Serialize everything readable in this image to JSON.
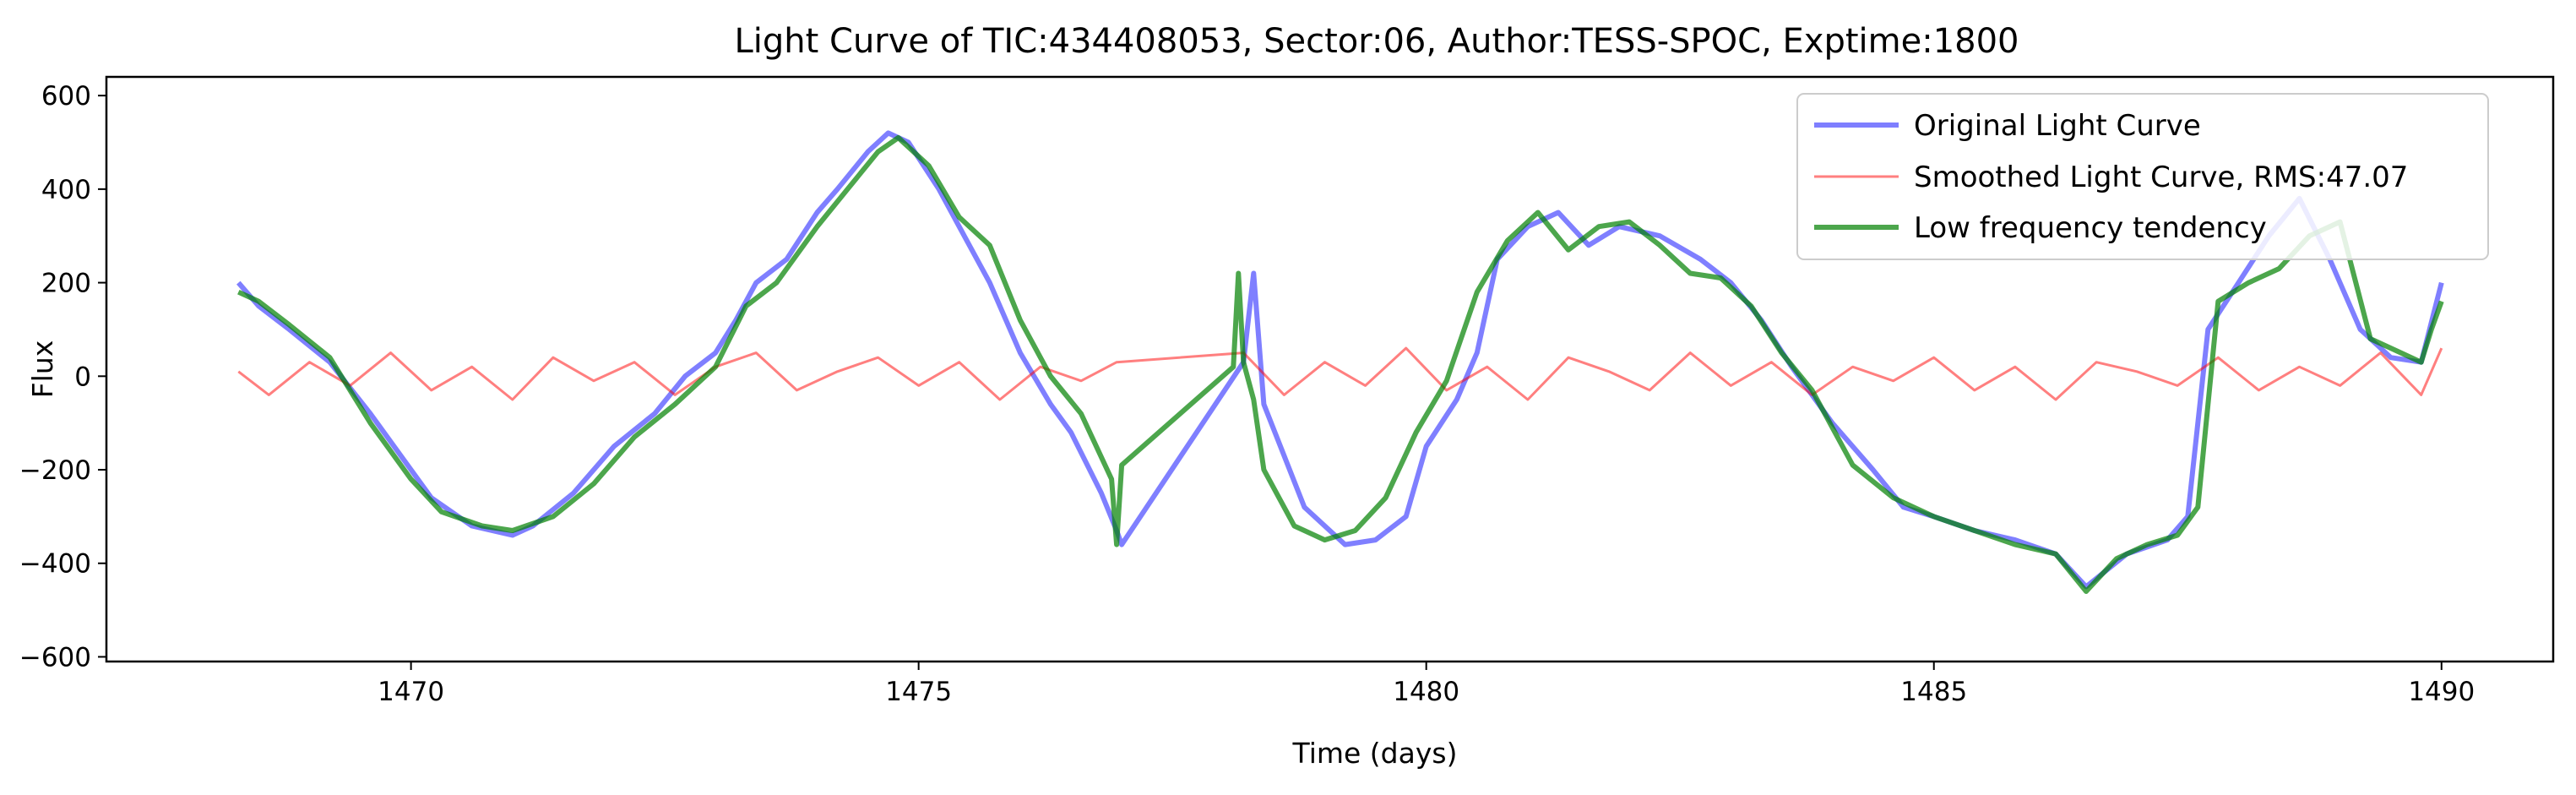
{
  "chart_data": {
    "type": "line",
    "title": "Light Curve of TIC:434408053, Sector:06, Author:TESS-SPOC, Exptime:1800",
    "xlabel": "Time (days)",
    "ylabel": "Flux",
    "xlim": [
      1467.0,
      1491.1
    ],
    "ylim": [
      -610,
      640
    ],
    "xticks": [
      1470,
      1475,
      1480,
      1485,
      1490
    ],
    "yticks": [
      -600,
      -400,
      -200,
      0,
      200,
      400,
      600
    ],
    "grid": false,
    "legend_position": "top-right",
    "series": [
      {
        "name": "Original Light Curve",
        "color": "#0000ff",
        "opacity": 0.5,
        "x": [
          1468.3,
          1468.5,
          1468.8,
          1469.2,
          1469.6,
          1470.0,
          1470.2,
          1470.6,
          1471.0,
          1471.2,
          1471.6,
          1472.0,
          1472.4,
          1472.7,
          1473.0,
          1473.2,
          1473.4,
          1473.7,
          1474.0,
          1474.2,
          1474.5,
          1474.7,
          1474.9,
          1475.2,
          1475.4,
          1475.7,
          1476.0,
          1476.3,
          1476.5,
          1476.8,
          1476.95,
          1477.0,
          1478.2,
          1478.3,
          1478.4,
          1478.8,
          1479.2,
          1479.5,
          1479.8,
          1480.0,
          1480.3,
          1480.5,
          1480.7,
          1481.0,
          1481.3,
          1481.6,
          1481.9,
          1482.3,
          1482.7,
          1483.0,
          1483.3,
          1483.6,
          1484.0,
          1484.4,
          1484.7,
          1485.0,
          1485.4,
          1485.8,
          1486.2,
          1486.5,
          1486.9,
          1487.3,
          1487.5,
          1487.7,
          1488.0,
          1488.3,
          1488.6,
          1488.9,
          1489.2,
          1489.5,
          1489.8,
          1490.0
        ],
        "y": [
          200,
          150,
          100,
          30,
          -80,
          -200,
          -260,
          -320,
          -340,
          -320,
          -250,
          -150,
          -80,
          0,
          50,
          120,
          200,
          250,
          350,
          400,
          480,
          520,
          500,
          400,
          320,
          200,
          50,
          -60,
          -120,
          -250,
          -330,
          -360,
          30,
          220,
          -60,
          -280,
          -360,
          -350,
          -300,
          -150,
          -50,
          50,
          250,
          320,
          350,
          280,
          320,
          300,
          250,
          200,
          120,
          20,
          -100,
          -200,
          -280,
          -300,
          -330,
          -350,
          -380,
          -450,
          -380,
          -350,
          -300,
          100,
          200,
          300,
          380,
          250,
          100,
          40,
          30,
          200
        ]
      },
      {
        "name": "Smoothed Light Curve, RMS:47.07",
        "color": "#ff0000",
        "opacity": 0.5,
        "x": [
          1468.3,
          1468.6,
          1469.0,
          1469.4,
          1469.8,
          1470.2,
          1470.6,
          1471.0,
          1471.4,
          1471.8,
          1472.2,
          1472.6,
          1473.0,
          1473.4,
          1473.8,
          1474.2,
          1474.6,
          1475.0,
          1475.4,
          1475.8,
          1476.2,
          1476.6,
          1476.95,
          1478.2,
          1478.6,
          1479.0,
          1479.4,
          1479.8,
          1480.2,
          1480.6,
          1481.0,
          1481.4,
          1481.8,
          1482.2,
          1482.6,
          1483.0,
          1483.4,
          1483.8,
          1484.2,
          1484.6,
          1485.0,
          1485.4,
          1485.8,
          1486.2,
          1486.6,
          1487.0,
          1487.4,
          1487.8,
          1488.2,
          1488.6,
          1489.0,
          1489.4,
          1489.8,
          1490.0
        ],
        "y": [
          10,
          -40,
          30,
          -20,
          50,
          -30,
          20,
          -50,
          40,
          -10,
          30,
          -40,
          20,
          50,
          -30,
          10,
          40,
          -20,
          30,
          -50,
          20,
          -10,
          30,
          50,
          -40,
          30,
          -20,
          60,
          -30,
          20,
          -50,
          40,
          10,
          -30,
          50,
          -20,
          30,
          -40,
          20,
          -10,
          40,
          -30,
          20,
          -50,
          30,
          10,
          -20,
          40,
          -30,
          20,
          -20,
          50,
          -40,
          60
        ]
      },
      {
        "name": "Low frequency tendency",
        "color": "#008000",
        "opacity": 0.7,
        "x": [
          1468.3,
          1468.5,
          1468.8,
          1469.2,
          1469.6,
          1470.0,
          1470.3,
          1470.7,
          1471.0,
          1471.4,
          1471.8,
          1472.2,
          1472.6,
          1473.0,
          1473.3,
          1473.6,
          1474.0,
          1474.3,
          1474.6,
          1474.8,
          1475.1,
          1475.4,
          1475.7,
          1476.0,
          1476.3,
          1476.6,
          1476.9,
          1476.95,
          1477.0,
          1478.1,
          1478.15,
          1478.2,
          1478.3,
          1478.4,
          1478.7,
          1479.0,
          1479.3,
          1479.6,
          1479.9,
          1480.2,
          1480.5,
          1480.8,
          1481.1,
          1481.4,
          1481.7,
          1482.0,
          1482.3,
          1482.6,
          1482.9,
          1483.2,
          1483.5,
          1483.8,
          1484.2,
          1484.6,
          1485.0,
          1485.4,
          1485.8,
          1486.2,
          1486.5,
          1486.8,
          1487.1,
          1487.4,
          1487.6,
          1487.8,
          1488.1,
          1488.4,
          1488.7,
          1489.0,
          1489.3,
          1489.6,
          1489.8,
          1489.9,
          1490.0
        ],
        "y": [
          180,
          160,
          110,
          40,
          -100,
          -220,
          -290,
          -320,
          -330,
          -300,
          -230,
          -130,
          -60,
          20,
          150,
          200,
          320,
          400,
          480,
          510,
          450,
          340,
          280,
          120,
          0,
          -80,
          -220,
          -360,
          -190,
          20,
          220,
          30,
          -50,
          -200,
          -320,
          -350,
          -330,
          -260,
          -120,
          -10,
          180,
          290,
          350,
          270,
          320,
          330,
          280,
          220,
          210,
          150,
          50,
          -30,
          -190,
          -260,
          -300,
          -330,
          -360,
          -380,
          -460,
          -390,
          -360,
          -340,
          -280,
          160,
          200,
          230,
          300,
          330,
          80,
          50,
          30,
          100,
          160
        ]
      }
    ]
  }
}
